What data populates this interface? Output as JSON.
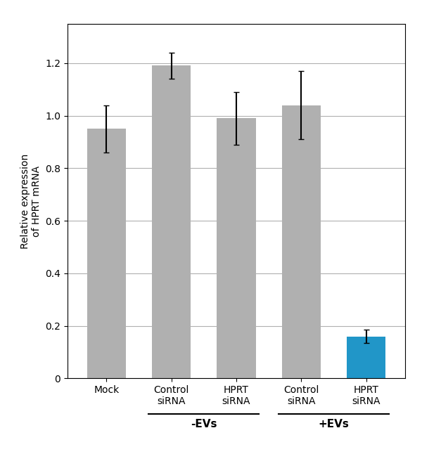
{
  "chart_data": {
    "type": "bar",
    "categories": [
      "Mock",
      "Control\nsiRNA",
      "HPRT\nsiRNA",
      "Control\nsiRNA",
      "HPRT\nsiRNA"
    ],
    "values": [
      0.95,
      1.19,
      0.99,
      1.04,
      0.16
    ],
    "errors": [
      0.09,
      0.05,
      0.1,
      0.13,
      0.025
    ],
    "colors": [
      "#b0b0b0",
      "#b0b0b0",
      "#b0b0b0",
      "#b0b0b0",
      "#2196c8"
    ],
    "y_label": "Relative expression\nof HPRT mRNA",
    "ylim": [
      0,
      1.35
    ],
    "yticks": [
      0,
      0.2,
      0.4,
      0.6,
      0.8,
      {
        "value": 1.0,
        "label": "1.0"
      },
      1.2
    ],
    "grid": true,
    "annotations": [
      {
        "text": "-EVs",
        "from": 1,
        "to": 2
      },
      {
        "text": "+EVs",
        "from": 3,
        "to": 4
      }
    ]
  }
}
